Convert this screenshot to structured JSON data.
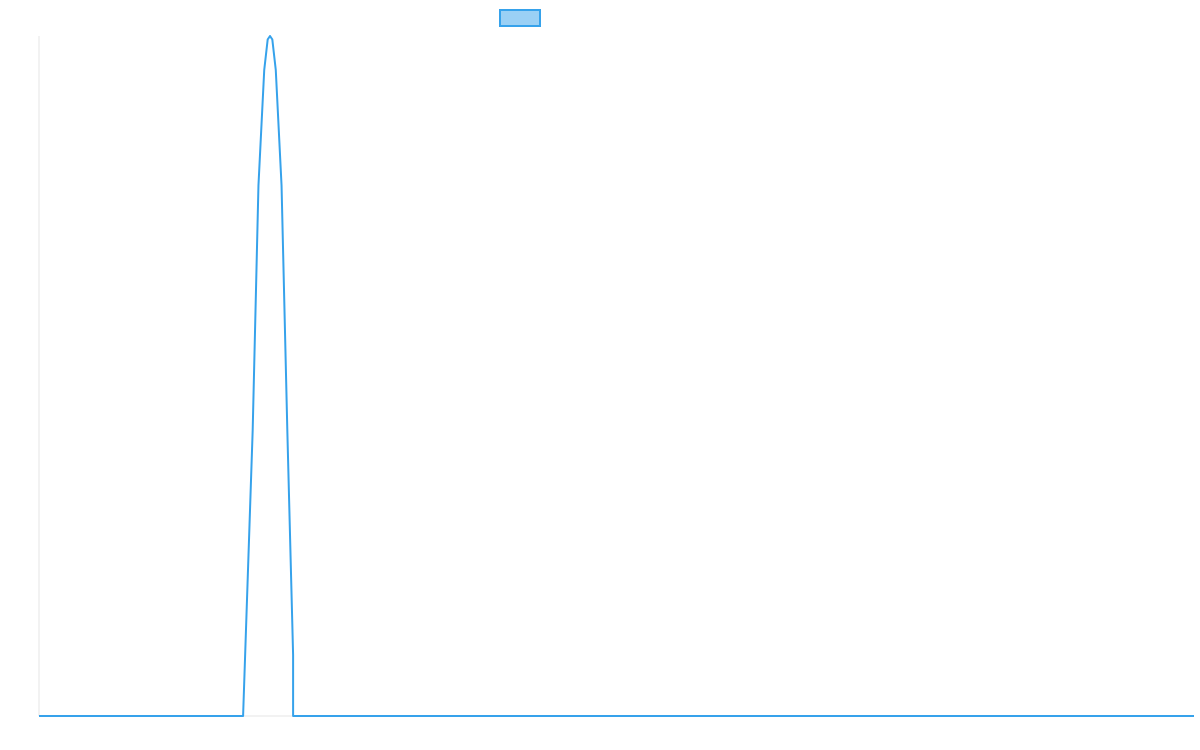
{
  "chart_data": {
    "type": "line",
    "title": "",
    "xlabel": "",
    "ylabel": "",
    "grid": false,
    "legend": "top-center",
    "xlim": [
      0,
      100
    ],
    "ylim": [
      0,
      1
    ],
    "series": [
      {
        "color": "#36a2eb",
        "fill": "#9ad0f5",
        "x": [
          0,
          17.67,
          18.5,
          19.0,
          19.5,
          19.8,
          20.0,
          20.2,
          20.5,
          21.0,
          21.5,
          22.0,
          22.0,
          100
        ],
        "y": [
          0,
          0,
          0.42,
          0.78,
          0.95,
          0.995,
          1.0,
          0.995,
          0.95,
          0.78,
          0.42,
          0.09,
          0,
          0
        ]
      }
    ]
  }
}
